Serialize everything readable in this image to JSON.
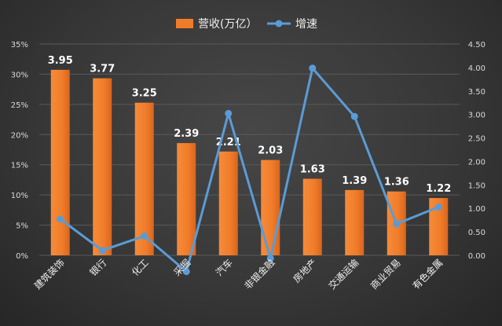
{
  "chart_data": {
    "type": "bar+line",
    "categories": [
      "建筑装饰",
      "银行",
      "化工",
      "采掘",
      "汽车",
      "非银金融",
      "房地产",
      "交通运输",
      "商业贸易",
      "有色金属"
    ],
    "series": [
      {
        "name": "营收(万亿）",
        "type": "bar",
        "axis": "right",
        "values": [
          3.95,
          3.77,
          3.25,
          2.39,
          2.21,
          2.03,
          1.63,
          1.39,
          1.36,
          1.22
        ],
        "value_labels": [
          "3.95",
          "3.77",
          "3.25",
          "2.39",
          "2.21",
          "2.03",
          "1.63",
          "1.39",
          "1.36",
          "1.22"
        ],
        "color": "#f07c2a"
      },
      {
        "name": "增速",
        "type": "line",
        "axis": "left",
        "values": [
          6.0,
          0.8,
          3.2,
          -2.7,
          23.5,
          -0.5,
          31.0,
          23.0,
          5.2,
          8.0
        ],
        "color": "#5b9bd5"
      }
    ],
    "y_left": {
      "ylim": [
        0,
        35
      ],
      "ticks": [
        0,
        5,
        10,
        15,
        20,
        25,
        30,
        35
      ],
      "tick_labels": [
        "0%",
        "5%",
        "10%",
        "15%",
        "20%",
        "25%",
        "30%",
        "35%"
      ]
    },
    "y_right": {
      "ylim": [
        0,
        4.5
      ],
      "ticks": [
        0,
        0.5,
        1,
        1.5,
        2,
        2.5,
        3,
        3.5,
        4,
        4.5
      ],
      "tick_labels": [
        "0.00",
        "0.50",
        "1.00",
        "1.50",
        "2.00",
        "2.50",
        "3.00",
        "3.50",
        "4.00",
        "4.50"
      ]
    },
    "legend": {
      "placement": "top-center"
    },
    "grid": true
  }
}
